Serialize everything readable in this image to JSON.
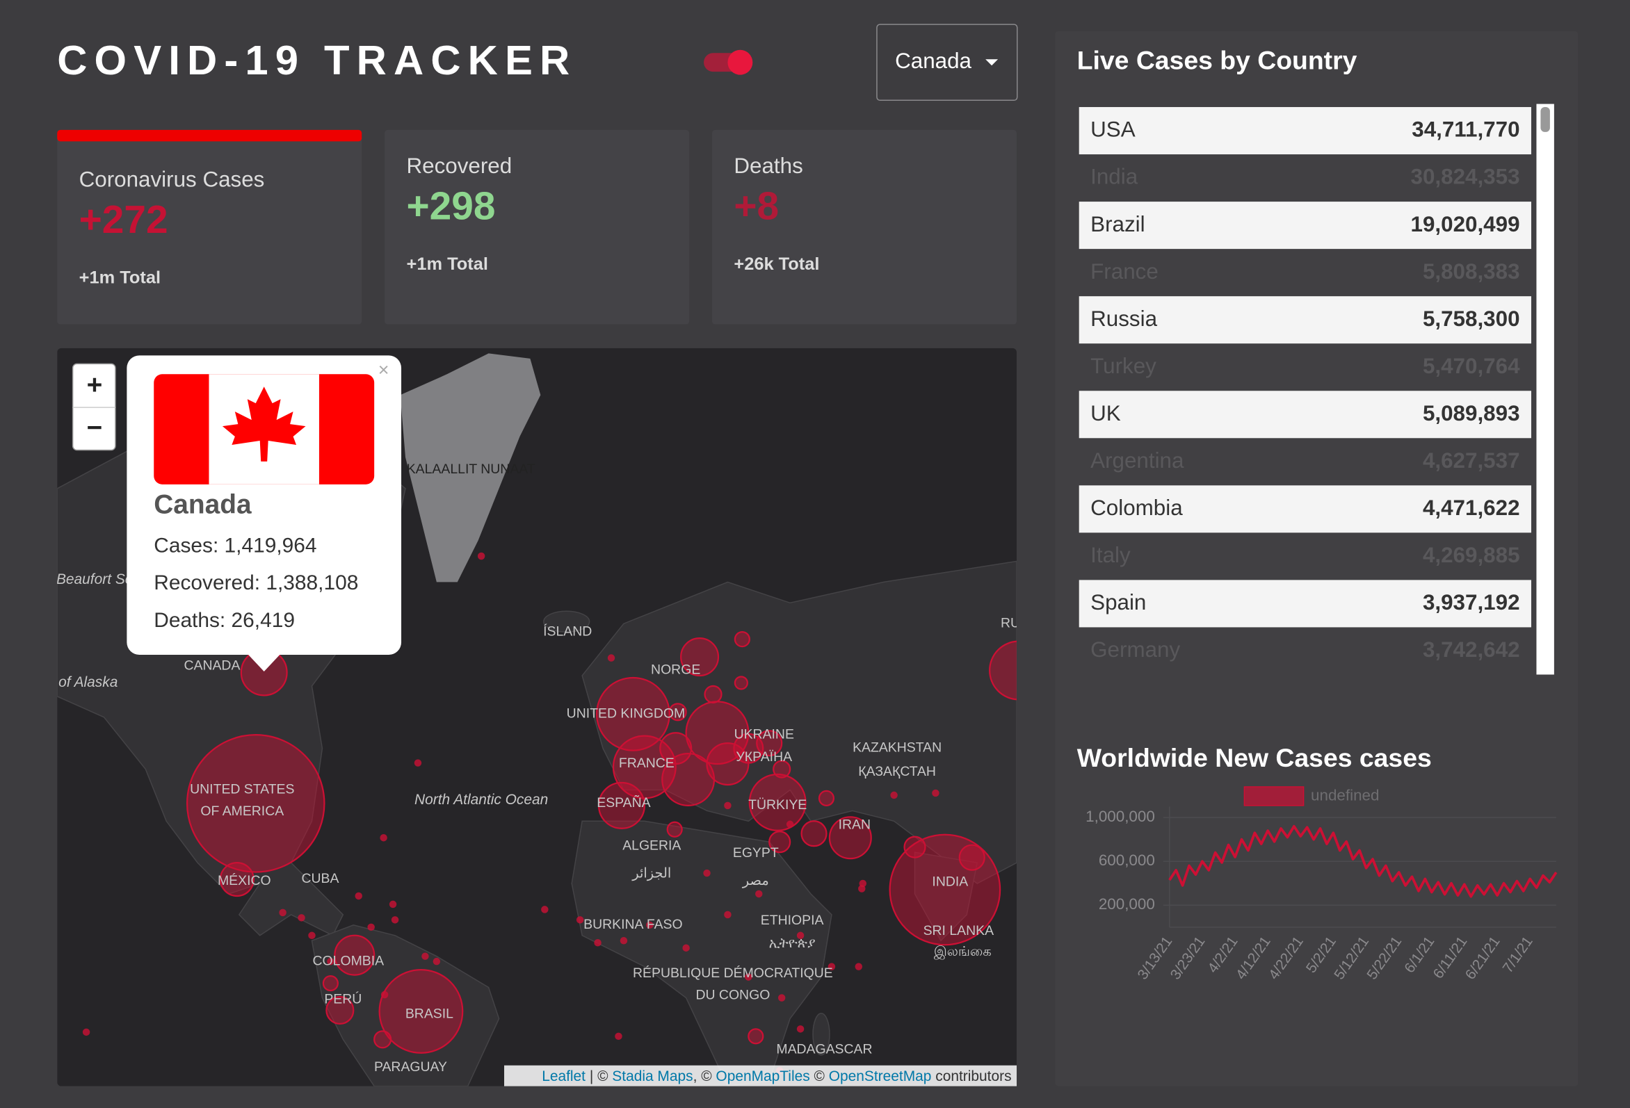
{
  "header": {
    "title": "COVID-19 TRACKER",
    "dropdown": "Canada"
  },
  "cards": [
    {
      "title": "Coronavirus Cases",
      "value": "+272",
      "total": "+1m Total"
    },
    {
      "title": "Recovered",
      "value": "+298",
      "total": "+1m Total"
    },
    {
      "title": "Deaths",
      "value": "+8",
      "total": "+26k Total"
    }
  ],
  "map": {
    "zoom": [
      "+",
      "−"
    ],
    "popup": {
      "close": "×",
      "country": "Canada",
      "cases": "Cases: 1,419,964",
      "recovered": "Recovered: 1,388,108",
      "deaths": "Deaths: 26,419"
    },
    "labels": [
      "KALAALLIT NUNAAT",
      "Beaufort Sea",
      "ÍSLAND",
      "CANADA",
      "Gulf of Alaska",
      "NORGE",
      "UNITED KINGDOM",
      "UKRAINE",
      "УКРАЇНА",
      "FRANCE",
      "KAZAKHSTAN",
      "ҚАЗАҚСТАН",
      "UNITED STATES",
      "OF AMERICA",
      "North Atlantic Ocean",
      "ESPAÑA",
      "TÜRKIYE",
      "IRAN",
      "ALGERIA",
      "الجزائر",
      "EGYPT",
      "مصر",
      "MÉXICO",
      "CUBA",
      "INDIA",
      "BURKINA FASO",
      "ETHIOPIA",
      "ኢትዮጵያ",
      "SRI LANKA",
      "இலங்கை",
      "COLOMBIA",
      "RÉPUBLIQUE DÉMOCRATIQUE",
      "DU CONGO",
      "PERÚ",
      "BRASIL",
      "MADAGASCAR",
      "PARAGUAY",
      "RU"
    ],
    "attribution": [
      "Leaflet",
      " | © ",
      "Stadia Maps",
      ", © ",
      "OpenMapTiles",
      " © ",
      "OpenStreetMap",
      " contributors"
    ]
  },
  "live_cases": {
    "title": "Live Cases by Country",
    "rows": [
      [
        "USA",
        "34,711,770"
      ],
      [
        "India",
        "30,824,353"
      ],
      [
        "Brazil",
        "19,020,499"
      ],
      [
        "France",
        "5,808,383"
      ],
      [
        "Russia",
        "5,758,300"
      ],
      [
        "Turkey",
        "5,470,764"
      ],
      [
        "UK",
        "5,089,893"
      ],
      [
        "Argentina",
        "4,627,537"
      ],
      [
        "Colombia",
        "4,471,622"
      ],
      [
        "Italy",
        "4,269,885"
      ],
      [
        "Spain",
        "3,937,192"
      ],
      [
        "Germany",
        "3,742,642"
      ]
    ]
  },
  "chart_data": {
    "type": "line",
    "title": "Worldwide New Cases cases",
    "categories": [
      "3/13/21",
      null,
      null,
      null,
      null,
      "3/23/21",
      null,
      null,
      null,
      null,
      "4/2/21",
      null,
      null,
      null,
      null,
      "4/12/21",
      null,
      null,
      null,
      null,
      "4/22/21",
      null,
      null,
      null,
      null,
      "5/2/21",
      null,
      null,
      null,
      null,
      "5/12/21",
      null,
      null,
      null,
      null,
      "5/22/21",
      null,
      null,
      null,
      null,
      "6/1/21",
      null,
      null,
      null,
      null,
      "6/11/21",
      null,
      null,
      null,
      null,
      "6/21/21",
      null,
      null,
      null,
      null,
      "7/1/21",
      null,
      null,
      null,
      null
    ],
    "series": [
      {
        "name": "undefined",
        "color": "#cc1034",
        "values": [
          430000,
          520000,
          380000,
          560000,
          480000,
          600000,
          520000,
          680000,
          590000,
          750000,
          640000,
          800000,
          700000,
          860000,
          760000,
          880000,
          780000,
          900000,
          820000,
          920000,
          830000,
          910000,
          800000,
          900000,
          760000,
          860000,
          700000,
          780000,
          620000,
          700000,
          540000,
          620000,
          470000,
          560000,
          420000,
          500000,
          380000,
          460000,
          330000,
          440000,
          320000,
          410000,
          300000,
          400000,
          290000,
          390000,
          280000,
          380000,
          300000,
          390000,
          290000,
          400000,
          320000,
          420000,
          330000,
          440000,
          360000,
          470000,
          410000,
          500000
        ]
      }
    ],
    "ylim": [
      0,
      1100000
    ],
    "yticks": [
      {
        "value": 200000,
        "label": "200,000"
      },
      {
        "value": 600000,
        "label": "600,000"
      },
      {
        "value": 1000000,
        "label": "1,000,000"
      }
    ]
  }
}
